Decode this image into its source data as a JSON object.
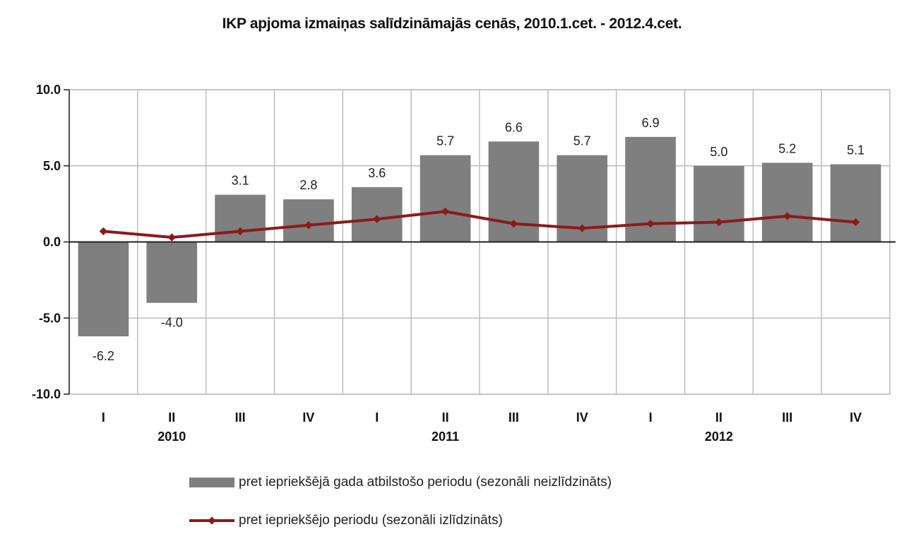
{
  "chart_data": {
    "type": "bar",
    "title": "IKP apjoma izmaiņas salīdzināmajās cenās, 2010.1.cet. - 2012.4.cet.",
    "categories": [
      "I",
      "II",
      "III",
      "IV",
      "I",
      "II",
      "III",
      "IV",
      "I",
      "II",
      "III",
      "IV"
    ],
    "year_labels": [
      "2010",
      "2011",
      "2012"
    ],
    "y_ticks": [
      "10.0",
      "5.0",
      "0.0",
      "-5.0",
      "-10.0"
    ],
    "ylim": [
      -10,
      10
    ],
    "grid": true,
    "legend_position": "bottom",
    "series": [
      {
        "name": "pret iepriekšējā gada atbilstošo periodu (sezonāli neizlīdzināts)",
        "type": "bar",
        "color": "#7f7f7f",
        "values": [
          -6.2,
          -4.0,
          3.1,
          2.8,
          3.6,
          5.7,
          6.6,
          5.7,
          6.9,
          5.0,
          5.2,
          5.1
        ],
        "labels": [
          "-6.2",
          "-4.0",
          "3.1",
          "2.8",
          "3.6",
          "5.7",
          "6.6",
          "5.7",
          "6.9",
          "5.0",
          "5.2",
          "5.1"
        ]
      },
      {
        "name": "pret iepriekšējo periodu (sezonāli izlīdzināts)",
        "type": "line",
        "color": "#8b1a1a",
        "values": [
          0.7,
          0.3,
          0.7,
          1.1,
          1.5,
          2.0,
          1.2,
          0.9,
          1.2,
          1.3,
          1.7,
          1.3
        ]
      }
    ]
  }
}
